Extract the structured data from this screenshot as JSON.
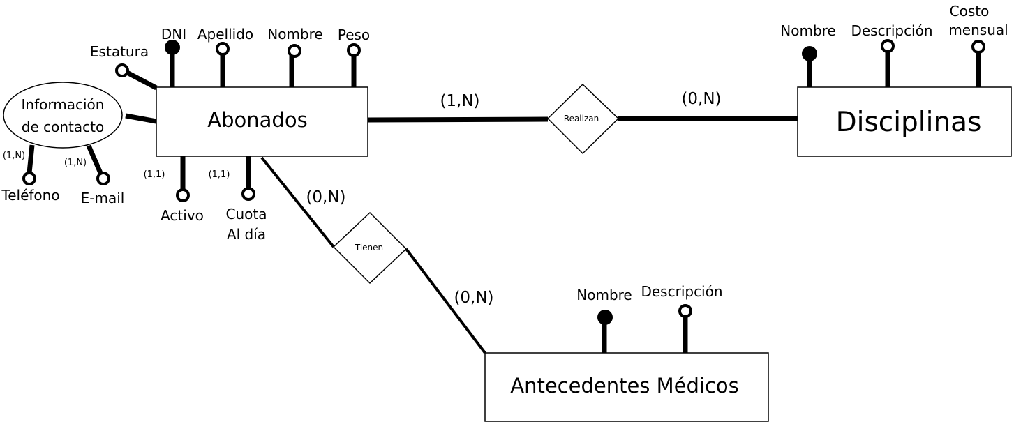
{
  "entities": {
    "abonados": "Abonados",
    "disciplinas": "Disciplinas",
    "antecedentes": "Antecedentes Médicos"
  },
  "relationships": {
    "realizan": "Realizan",
    "tienen": "Tienen"
  },
  "composite": {
    "line1": "Información",
    "line2": "de contacto"
  },
  "attributes": {
    "abonados": {
      "dni": "DNI",
      "apellido": "Apellido",
      "nombre": "Nombre",
      "peso": "Peso",
      "estatura": "Estatura",
      "activo": "Activo",
      "cuota_line1": "Cuota",
      "cuota_line2": "Al día",
      "telefono": "Teléfono",
      "email": "E-mail"
    },
    "disciplinas": {
      "nombre": "Nombre",
      "descripcion": "Descripción",
      "costo_line1": "Costo",
      "costo_line2": "mensual"
    },
    "antecedentes": {
      "nombre": "Nombre",
      "descripcion": "Descripción"
    }
  },
  "cardinalities": {
    "abonados_realizan": "(1,N)",
    "disciplinas_realizan": "(0,N)",
    "abonados_tienen": "(0,N)",
    "antecedentes_tienen": "(0,N)",
    "telefono": "(1,N)",
    "email": "(1,N)",
    "activo": "(1,1)",
    "cuota": "(1,1)"
  }
}
